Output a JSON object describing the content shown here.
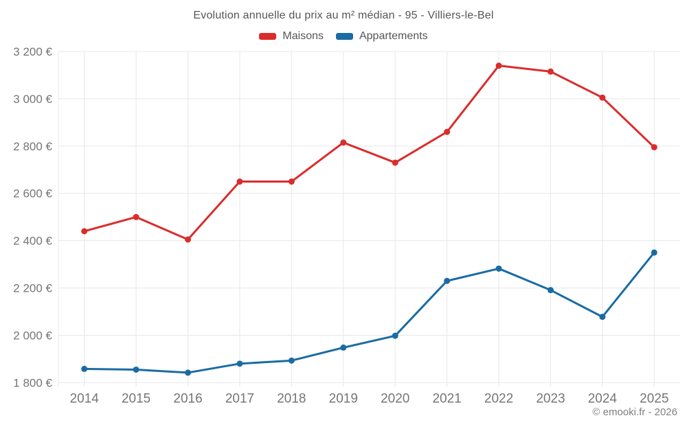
{
  "page": {
    "background": "#ffffff",
    "grid_color": "#e8e8e8",
    "tick_label_color": "#757575",
    "title_color": "#565656"
  },
  "footer": {
    "copyright": "© emooki.fr - 2026"
  },
  "chart_data": {
    "type": "line",
    "title": "Evolution annuelle du prix au m² médian - 95 - Villiers-le-Bel",
    "categories": [
      "2014",
      "2015",
      "2016",
      "2017",
      "2018",
      "2019",
      "2020",
      "2021",
      "2022",
      "2023",
      "2024",
      "2025"
    ],
    "series": [
      {
        "name": "Maisons",
        "color": "#db2c2c",
        "values": [
          2440,
          2500,
          2405,
          2650,
          2650,
          2815,
          2730,
          2860,
          3140,
          3115,
          3005,
          2795
        ]
      },
      {
        "name": "Appartements",
        "color": "#1a6ba3",
        "values": [
          1858,
          1855,
          1842,
          1880,
          1893,
          1948,
          1998,
          2230,
          2282,
          2191,
          2078,
          2350
        ]
      }
    ],
    "xlabel": "",
    "ylabel": "",
    "ylim": [
      1800,
      3200
    ],
    "ytick_step": 200,
    "y_unit": "€",
    "grid": true,
    "legend_position": "top",
    "marker_radius": 4.5,
    "line_width": 3
  }
}
